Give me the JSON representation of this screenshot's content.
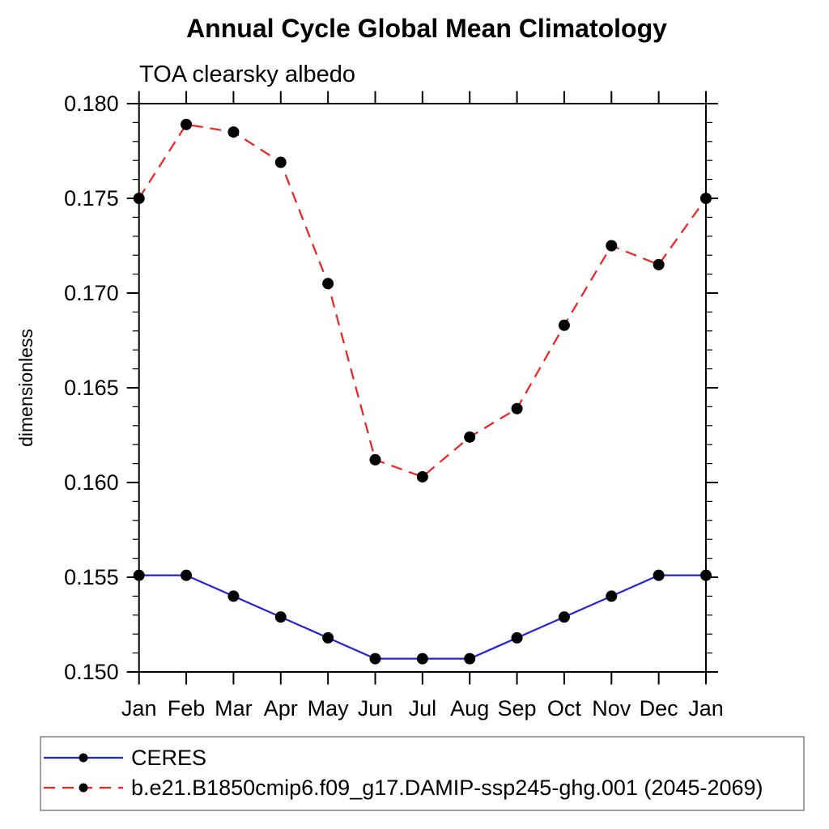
{
  "chart_data": {
    "type": "line",
    "title": "Annual Cycle Global Mean Climatology",
    "subtitle": "TOA clearsky albedo",
    "ylabel": "dimensionless",
    "xlabel": "",
    "categories": [
      "Jan",
      "Feb",
      "Mar",
      "Apr",
      "May",
      "Jun",
      "Jul",
      "Aug",
      "Sep",
      "Oct",
      "Nov",
      "Dec",
      "Jan"
    ],
    "ylim": [
      0.15,
      0.18
    ],
    "ytick_major_step": 0.005,
    "ytick_minor_step": 0.001,
    "ytick_labels": [
      "0.150",
      "0.155",
      "0.160",
      "0.165",
      "0.170",
      "0.175",
      "0.180"
    ],
    "grid": false,
    "legend_position": "bottom-left-box",
    "axis_color": "#000000",
    "legend_border_color": "#808080",
    "marker_color": "#000000",
    "series": [
      {
        "name": "CERES",
        "color": "#2222dd",
        "line_style": "solid",
        "marker": "circle",
        "values": [
          0.1551,
          0.1551,
          0.154,
          0.1529,
          0.1518,
          0.1507,
          0.1507,
          0.1507,
          0.1518,
          0.1529,
          0.154,
          0.1551,
          0.1551
        ]
      },
      {
        "name": "b.e21.B1850cmip6.f09_g17.DAMIP-ssp245-ghg.001 (2045-2069)",
        "color": "#ee2222",
        "line_style": "dashed",
        "marker": "circle",
        "values": [
          0.175,
          0.1789,
          0.1785,
          0.1769,
          0.1705,
          0.1612,
          0.1603,
          0.1624,
          0.1639,
          0.1683,
          0.1725,
          0.1715,
          0.175
        ]
      }
    ]
  }
}
